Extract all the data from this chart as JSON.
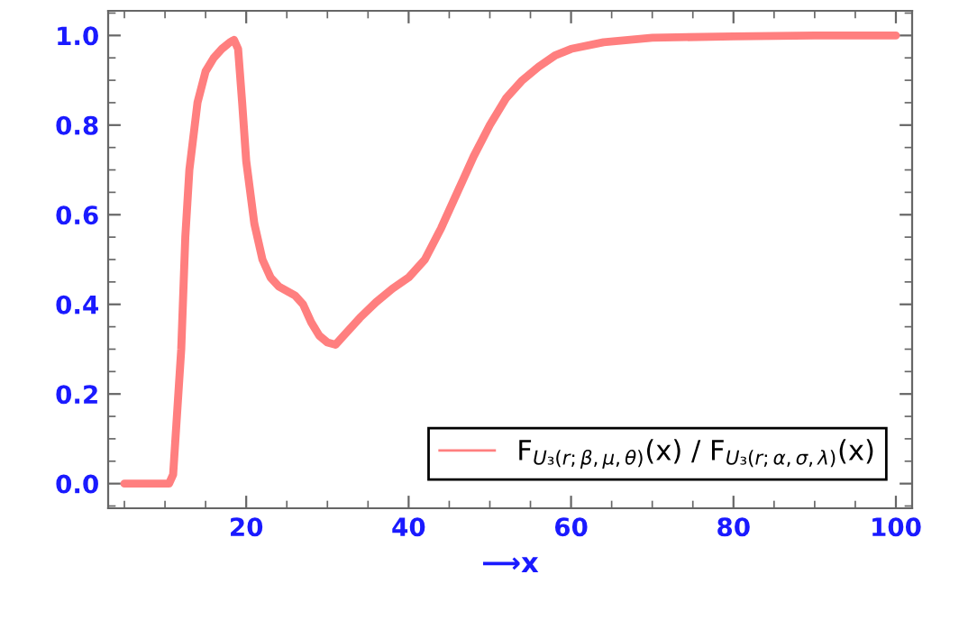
{
  "chart_data": {
    "type": "line",
    "xlabel": "⟶x",
    "x": [
      5,
      10.5,
      11,
      12,
      12.5,
      13,
      14,
      15,
      16,
      17,
      18,
      18.5,
      19,
      19.5,
      20,
      21,
      22,
      23,
      24,
      25,
      26,
      27,
      28,
      29,
      30,
      31,
      32,
      34,
      36,
      38,
      40,
      42,
      44,
      46,
      48,
      50,
      52,
      54,
      56,
      58,
      60,
      64,
      70,
      80,
      90,
      100
    ],
    "series": [
      {
        "name": "F$_{U₃(r;β,μ,θ)}$(x) / F$_{U₃(r;α,σ,λ)}$(x)",
        "color": "#ff7f7f",
        "values": [
          0,
          0,
          0.02,
          0.3,
          0.55,
          0.7,
          0.85,
          0.92,
          0.95,
          0.97,
          0.985,
          0.99,
          0.97,
          0.85,
          0.72,
          0.58,
          0.5,
          0.46,
          0.44,
          0.43,
          0.42,
          0.4,
          0.36,
          0.33,
          0.315,
          0.31,
          0.33,
          0.37,
          0.405,
          0.435,
          0.46,
          0.5,
          0.57,
          0.65,
          0.73,
          0.8,
          0.86,
          0.9,
          0.93,
          0.955,
          0.97,
          0.985,
          0.995,
          0.998,
          1.0,
          1.0
        ]
      }
    ],
    "xlim": [
      3,
      102
    ],
    "ylim": [
      -0.055,
      1.055
    ],
    "xticks": [
      20,
      40,
      60,
      80,
      100
    ],
    "yticks": [
      {
        "value": 0,
        "label": "0.0"
      },
      {
        "value": 0.2,
        "label": "0.2"
      },
      {
        "value": 0.4,
        "label": "0.4"
      },
      {
        "value": 0.6,
        "label": "0.6"
      },
      {
        "value": 0.8,
        "label": "0.8"
      },
      {
        "value": 1.0,
        "label": "1.0"
      }
    ],
    "legend": "bottom right",
    "grid": false,
    "marker": "none",
    "line_style": "solid"
  }
}
